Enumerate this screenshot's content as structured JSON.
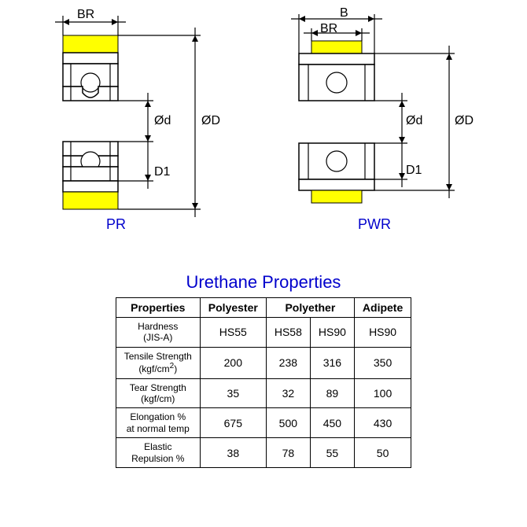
{
  "diagrams": {
    "left": {
      "label": "PR",
      "dims": {
        "BR": "BR",
        "d": "Ød",
        "D": "ØD",
        "D1": "D1"
      },
      "urethane_color": "#ffff00",
      "line_color": "#000000"
    },
    "right": {
      "label": "PWR",
      "dims": {
        "B": "B",
        "BR": "BR",
        "d": "Ød",
        "D": "ØD",
        "D1": "D1"
      },
      "urethane_color": "#ffff00",
      "line_color": "#000000"
    }
  },
  "table": {
    "title": "Urethane Properties",
    "title_color": "#0000cc",
    "columns": [
      "Properties",
      "Polyester",
      "Polyether",
      "",
      "Adipete"
    ],
    "col_span_polyether": 2,
    "rows": [
      {
        "label": "Hardness\n(JIS-A)",
        "values": [
          "HS55",
          "HS58",
          "HS90",
          "HS90"
        ]
      },
      {
        "label": "Tensile Strength\n(kgf/cm²)",
        "values": [
          "200",
          "238",
          "316",
          "350"
        ]
      },
      {
        "label": "Tear Strength\n(kgf/cm)",
        "values": [
          "35",
          "32",
          "89",
          "100"
        ]
      },
      {
        "label": "Elongation %\nat normal temp",
        "values": [
          "675",
          "500",
          "450",
          "430"
        ]
      },
      {
        "label": "Elastic\nRepulsion %",
        "values": [
          "38",
          "78",
          "55",
          "50"
        ]
      }
    ],
    "border_color": "#000000",
    "background_color": "#ffffff"
  }
}
